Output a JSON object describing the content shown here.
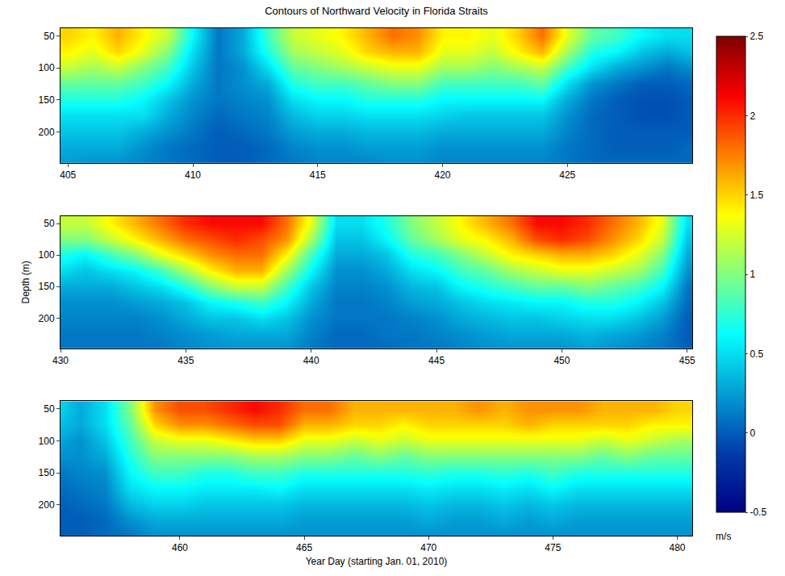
{
  "chart_data": [
    {
      "type": "heatmap",
      "title": "Contours of Northward Velocity in Florida Straits",
      "color": "Jet",
      "x": [
        405,
        406,
        407,
        408,
        409,
        410,
        411,
        412,
        413,
        414,
        415,
        416,
        417,
        418,
        419,
        420,
        421,
        422,
        423,
        424,
        425,
        426,
        427,
        428,
        429,
        430
      ],
      "y": [
        50,
        75,
        100,
        125,
        150,
        175,
        200,
        225,
        250
      ],
      "profiles": [
        [
          1.5,
          1.4,
          1.2,
          0.9,
          0.7,
          0.5,
          0.4,
          0.3,
          0.25
        ],
        [
          1.4,
          1.3,
          1.1,
          0.9,
          0.7,
          0.5,
          0.4,
          0.3,
          0.2
        ],
        [
          1.6,
          1.5,
          1.2,
          0.9,
          0.7,
          0.5,
          0.4,
          0.3,
          0.2
        ],
        [
          1.4,
          1.3,
          1.0,
          0.8,
          0.6,
          0.5,
          0.3,
          0.2,
          0.15
        ],
        [
          1.2,
          1.0,
          0.8,
          0.6,
          0.4,
          0.3,
          0.2,
          0.1,
          0.1
        ],
        [
          0.6,
          0.5,
          0.4,
          0.3,
          0.2,
          0.15,
          0.1,
          0.05,
          0.05
        ],
        [
          0.1,
          0.1,
          0.1,
          0.1,
          0.1,
          0.05,
          0.0,
          0.0,
          0.0
        ],
        [
          0.3,
          0.3,
          0.2,
          0.2,
          0.15,
          0.1,
          0.05,
          0.0,
          0.0
        ],
        [
          0.8,
          0.7,
          0.5,
          0.3,
          0.2,
          0.15,
          0.1,
          0.05,
          0.05
        ],
        [
          1.2,
          1.1,
          0.9,
          0.7,
          0.5,
          0.35,
          0.25,
          0.15,
          0.1
        ],
        [
          1.3,
          1.2,
          1.0,
          0.8,
          0.6,
          0.45,
          0.3,
          0.2,
          0.15
        ],
        [
          1.4,
          1.3,
          1.1,
          0.8,
          0.6,
          0.45,
          0.3,
          0.2,
          0.15
        ],
        [
          1.6,
          1.5,
          1.2,
          0.9,
          0.7,
          0.5,
          0.35,
          0.25,
          0.15
        ],
        [
          1.8,
          1.6,
          1.3,
          1.0,
          0.7,
          0.5,
          0.35,
          0.25,
          0.2
        ],
        [
          1.7,
          1.6,
          1.3,
          1.0,
          0.7,
          0.5,
          0.35,
          0.25,
          0.2
        ],
        [
          1.4,
          1.3,
          1.1,
          0.8,
          0.6,
          0.45,
          0.3,
          0.2,
          0.15
        ],
        [
          1.4,
          1.3,
          1.1,
          0.8,
          0.6,
          0.4,
          0.3,
          0.2,
          0.15
        ],
        [
          1.3,
          1.2,
          1.0,
          0.8,
          0.6,
          0.4,
          0.3,
          0.2,
          0.15
        ],
        [
          1.5,
          1.4,
          1.1,
          0.8,
          0.6,
          0.4,
          0.3,
          0.2,
          0.15
        ],
        [
          1.8,
          1.6,
          1.2,
          0.9,
          0.6,
          0.4,
          0.3,
          0.2,
          0.15
        ],
        [
          1.3,
          1.1,
          0.8,
          0.5,
          0.3,
          0.2,
          0.15,
          0.1,
          0.1
        ],
        [
          0.9,
          0.7,
          0.5,
          0.2,
          0.1,
          0.05,
          0.05,
          0.05,
          0.05
        ],
        [
          0.8,
          0.6,
          0.3,
          0.1,
          0.0,
          0.0,
          0.0,
          0.0,
          0.05
        ],
        [
          0.6,
          0.4,
          0.2,
          0.0,
          -0.05,
          -0.05,
          0.0,
          0.0,
          0.05
        ],
        [
          0.5,
          0.3,
          0.1,
          0.0,
          -0.05,
          -0.05,
          0.0,
          0.0,
          0.05
        ],
        [
          0.5,
          0.4,
          0.2,
          0.05,
          0.0,
          0.0,
          0.0,
          0.05,
          0.05
        ]
      ],
      "xlim": [
        404.7,
        430
      ],
      "xticks": [
        405,
        410,
        415,
        420,
        425
      ],
      "ylim": [
        248,
        38
      ],
      "yticks": [
        50,
        100,
        150,
        200
      ]
    },
    {
      "type": "heatmap",
      "y_label": "Depth (m)",
      "color": "Jet",
      "x": [
        430,
        431,
        432,
        433,
        434,
        435,
        436,
        437,
        438,
        439,
        440,
        441,
        442,
        443,
        444,
        445,
        446,
        447,
        448,
        449,
        450,
        451,
        452,
        453,
        454,
        455
      ],
      "y": [
        50,
        75,
        100,
        125,
        150,
        175,
        200,
        225,
        250
      ],
      "profiles": [
        [
          1.2,
          1.0,
          0.7,
          0.5,
          0.3,
          0.2,
          0.15,
          0.1,
          0.1
        ],
        [
          1.2,
          1.0,
          0.6,
          0.4,
          0.3,
          0.2,
          0.15,
          0.1,
          0.1
        ],
        [
          1.4,
          1.2,
          0.8,
          0.5,
          0.3,
          0.2,
          0.15,
          0.1,
          0.1
        ],
        [
          1.6,
          1.4,
          1.0,
          0.6,
          0.4,
          0.25,
          0.15,
          0.1,
          0.1
        ],
        [
          1.8,
          1.6,
          1.3,
          0.8,
          0.5,
          0.3,
          0.2,
          0.15,
          0.1
        ],
        [
          2.0,
          1.8,
          1.5,
          1.1,
          0.7,
          0.4,
          0.3,
          0.2,
          0.15
        ],
        [
          2.1,
          1.9,
          1.7,
          1.4,
          1.0,
          0.6,
          0.4,
          0.25,
          0.2
        ],
        [
          2.1,
          2.0,
          1.8,
          1.6,
          1.2,
          0.7,
          0.4,
          0.3,
          0.2
        ],
        [
          2.1,
          1.9,
          1.8,
          1.6,
          1.2,
          0.8,
          0.5,
          0.3,
          0.2
        ],
        [
          1.8,
          1.7,
          1.4,
          1.1,
          0.8,
          0.6,
          0.4,
          0.3,
          0.2
        ],
        [
          1.3,
          1.1,
          0.8,
          0.6,
          0.4,
          0.3,
          0.2,
          0.15,
          0.1
        ],
        [
          0.5,
          0.4,
          0.3,
          0.2,
          0.15,
          0.1,
          0.1,
          0.05,
          0.05
        ],
        [
          0.5,
          0.4,
          0.3,
          0.2,
          0.15,
          0.1,
          0.1,
          0.05,
          0.05
        ],
        [
          0.7,
          0.6,
          0.4,
          0.3,
          0.2,
          0.15,
          0.1,
          0.1,
          0.05
        ],
        [
          1.0,
          0.9,
          0.7,
          0.5,
          0.35,
          0.25,
          0.15,
          0.1,
          0.1
        ],
        [
          1.2,
          1.1,
          0.8,
          0.6,
          0.4,
          0.3,
          0.2,
          0.15,
          0.1
        ],
        [
          1.4,
          1.3,
          1.0,
          0.8,
          0.6,
          0.4,
          0.3,
          0.2,
          0.15
        ],
        [
          1.6,
          1.4,
          1.2,
          0.9,
          0.7,
          0.5,
          0.35,
          0.25,
          0.2
        ],
        [
          1.8,
          1.6,
          1.4,
          1.1,
          0.8,
          0.55,
          0.4,
          0.3,
          0.2
        ],
        [
          2.1,
          1.9,
          1.5,
          1.2,
          0.9,
          0.6,
          0.4,
          0.3,
          0.2
        ],
        [
          2.1,
          2.0,
          1.6,
          1.3,
          0.9,
          0.6,
          0.45,
          0.3,
          0.2
        ],
        [
          2.0,
          1.9,
          1.6,
          1.3,
          1.0,
          0.7,
          0.5,
          0.35,
          0.25
        ],
        [
          1.8,
          1.7,
          1.5,
          1.2,
          0.9,
          0.7,
          0.5,
          0.3,
          0.2
        ],
        [
          1.6,
          1.5,
          1.3,
          1.1,
          0.8,
          0.6,
          0.4,
          0.25,
          0.15
        ],
        [
          1.3,
          1.2,
          1.0,
          0.8,
          0.6,
          0.4,
          0.25,
          0.15,
          0.1
        ],
        [
          0.5,
          0.4,
          0.3,
          0.2,
          0.1,
          0.05,
          0.0,
          0.0,
          0.0
        ]
      ],
      "xlim": [
        430,
        455.2
      ],
      "xticks": [
        430,
        435,
        440,
        445,
        450,
        455
      ],
      "ylim": [
        248,
        38
      ],
      "yticks": [
        50,
        100,
        150,
        200
      ]
    },
    {
      "type": "heatmap",
      "x_label": "Year Day (starting Jan. 01, 2010)",
      "color": "Jet",
      "x": [
        455,
        456,
        457,
        458,
        459,
        460,
        461,
        462,
        463,
        464,
        465,
        466,
        467,
        468,
        469,
        470,
        471,
        472,
        473,
        474,
        475,
        476,
        477,
        478,
        479,
        480,
        481
      ],
      "y": [
        50,
        75,
        100,
        125,
        150,
        175,
        200,
        225,
        250
      ],
      "profiles": [
        [
          0.5,
          0.4,
          0.3,
          0.2,
          0.1,
          0.05,
          0.0,
          0.0,
          0.0
        ],
        [
          0.3,
          0.3,
          0.2,
          0.2,
          0.15,
          0.1,
          0.05,
          0.0,
          0.0
        ],
        [
          0.5,
          0.5,
          0.4,
          0.3,
          0.2,
          0.15,
          0.1,
          0.05,
          0.05
        ],
        [
          1.0,
          0.9,
          0.8,
          0.7,
          0.6,
          0.5,
          0.35,
          0.2,
          0.1
        ],
        [
          1.7,
          1.5,
          1.2,
          1.0,
          0.8,
          0.6,
          0.45,
          0.3,
          0.2
        ],
        [
          1.9,
          1.7,
          1.3,
          1.0,
          0.8,
          0.6,
          0.45,
          0.3,
          0.2
        ],
        [
          1.9,
          1.7,
          1.3,
          1.0,
          0.7,
          0.55,
          0.4,
          0.3,
          0.2
        ],
        [
          2.0,
          1.8,
          1.4,
          1.0,
          0.7,
          0.55,
          0.4,
          0.3,
          0.2
        ],
        [
          2.1,
          1.9,
          1.5,
          1.1,
          0.8,
          0.55,
          0.4,
          0.3,
          0.2
        ],
        [
          2.0,
          1.9,
          1.5,
          1.1,
          0.8,
          0.6,
          0.4,
          0.3,
          0.2
        ],
        [
          1.8,
          1.6,
          1.3,
          1.0,
          0.7,
          0.5,
          0.35,
          0.25,
          0.2
        ],
        [
          1.8,
          1.6,
          1.3,
          1.0,
          0.7,
          0.5,
          0.35,
          0.25,
          0.2
        ],
        [
          1.6,
          1.5,
          1.2,
          0.9,
          0.7,
          0.5,
          0.35,
          0.25,
          0.2
        ],
        [
          1.6,
          1.5,
          1.3,
          1.0,
          0.7,
          0.5,
          0.35,
          0.25,
          0.2
        ],
        [
          1.6,
          1.4,
          1.2,
          0.9,
          0.7,
          0.5,
          0.35,
          0.25,
          0.2
        ],
        [
          1.6,
          1.5,
          1.3,
          1.0,
          0.75,
          0.55,
          0.4,
          0.3,
          0.2
        ],
        [
          1.6,
          1.5,
          1.3,
          1.0,
          0.7,
          0.5,
          0.35,
          0.25,
          0.2
        ],
        [
          1.7,
          1.5,
          1.3,
          1.0,
          0.7,
          0.5,
          0.35,
          0.25,
          0.2
        ],
        [
          1.6,
          1.5,
          1.3,
          1.0,
          0.75,
          0.55,
          0.4,
          0.3,
          0.2
        ],
        [
          1.7,
          1.6,
          1.3,
          1.0,
          0.7,
          0.5,
          0.35,
          0.25,
          0.2
        ],
        [
          1.7,
          1.5,
          1.3,
          1.0,
          0.8,
          0.6,
          0.4,
          0.3,
          0.2
        ],
        [
          1.7,
          1.5,
          1.3,
          1.0,
          0.7,
          0.5,
          0.35,
          0.25,
          0.2
        ],
        [
          1.6,
          1.5,
          1.2,
          0.9,
          0.7,
          0.5,
          0.35,
          0.25,
          0.2
        ],
        [
          1.6,
          1.5,
          1.3,
          1.0,
          0.7,
          0.5,
          0.35,
          0.25,
          0.2
        ],
        [
          1.6,
          1.4,
          1.2,
          0.9,
          0.7,
          0.5,
          0.35,
          0.25,
          0.2
        ],
        [
          1.5,
          1.4,
          1.1,
          0.9,
          0.7,
          0.5,
          0.35,
          0.25,
          0.2
        ],
        [
          1.5,
          1.4,
          1.1,
          0.9,
          0.7,
          0.5,
          0.35,
          0.25,
          0.2
        ]
      ],
      "xlim": [
        455.2,
        480.6
      ],
      "xticks": [
        460,
        465,
        470,
        475,
        480
      ],
      "ylim": [
        248,
        38
      ],
      "yticks": [
        50,
        100,
        150,
        200
      ],
      "colorbar": {
        "range": [
          -0.5,
          2.5
        ],
        "ticks": [
          -0.5,
          0,
          0.5,
          1,
          1.5,
          2,
          2.5
        ],
        "label": "m/s"
      }
    }
  ]
}
